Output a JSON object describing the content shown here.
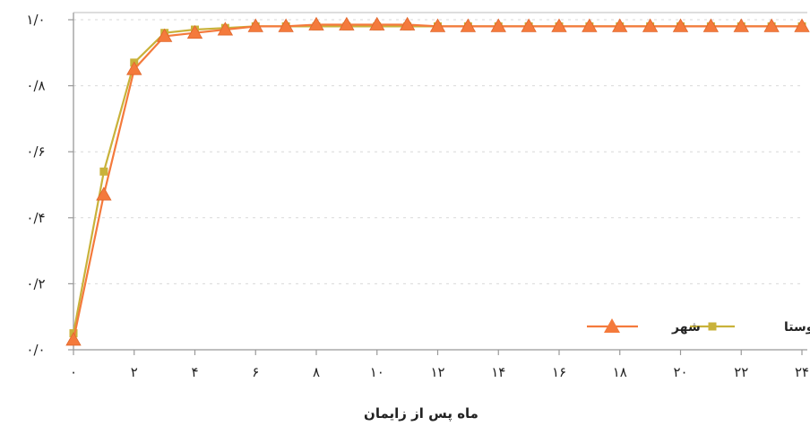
{
  "chart_data": {
    "type": "line",
    "title": "",
    "xlabel": "ماه پس از زایمان",
    "ylabel": "",
    "xlim": [
      0,
      24
    ],
    "ylim": [
      0,
      1
    ],
    "x_ticks": [
      0,
      2,
      4,
      6,
      8,
      10,
      12,
      14,
      16,
      18,
      20,
      22,
      24
    ],
    "x_tick_labels": [
      "۰",
      "۲",
      "۴",
      "۶",
      "۸",
      "۱۰",
      "۱۲",
      "۱۴",
      "۱۶",
      "۱۸",
      "۲۰",
      "۲۲",
      "۲۴"
    ],
    "y_ticks": [
      0,
      0.2,
      0.4,
      0.6,
      0.8,
      1.0
    ],
    "y_tick_labels": [
      "۰/۰",
      "۰/۲",
      "۰/۴",
      "۰/۶",
      "۰/۸",
      "۱/۰"
    ],
    "grid": true,
    "legend_position": "bottom-right",
    "x": [
      0,
      1,
      2,
      3,
      4,
      5,
      6,
      7,
      8,
      9,
      10,
      11,
      12,
      13,
      14,
      15,
      16,
      17,
      18,
      19,
      20,
      21,
      22,
      23,
      24
    ],
    "series": [
      {
        "name": "شهر",
        "color": "#f47a3c",
        "marker": "triangle",
        "values": [
          0.03,
          0.47,
          0.85,
          0.95,
          0.96,
          0.97,
          0.98,
          0.98,
          0.985,
          0.985,
          0.985,
          0.985,
          0.98,
          0.98,
          0.98,
          0.98,
          0.98,
          0.98,
          0.98,
          0.98,
          0.98,
          0.98,
          0.98,
          0.98,
          0.98
        ]
      },
      {
        "name": "روستا",
        "color": "#c9b23a",
        "marker": "square",
        "values": [
          0.05,
          0.54,
          0.87,
          0.96,
          0.97,
          0.975,
          0.98,
          0.98,
          0.98,
          0.98,
          0.98,
          0.98,
          0.98,
          0.98,
          0.98,
          0.98,
          0.98,
          0.98,
          0.98,
          0.98,
          0.98,
          0.98,
          0.98,
          0.98,
          0.98
        ]
      }
    ]
  }
}
